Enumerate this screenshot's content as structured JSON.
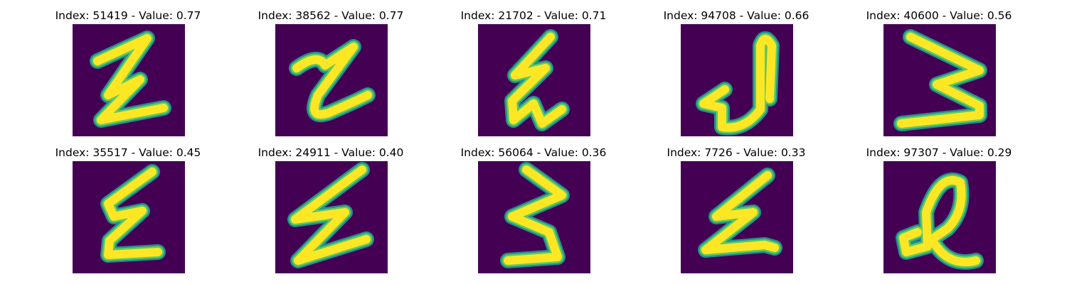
{
  "colors": {
    "background": "#440154",
    "stroke_core": "#fde725",
    "stroke_mid": "#5ec962",
    "stroke_edge": "#21918c"
  },
  "panels": [
    {
      "title": "Index: 51419 - Value: 0.77",
      "glyph": "handwritten-digit-image"
    },
    {
      "title": "Index: 38562 - Value: 0.77",
      "glyph": "handwritten-digit-image"
    },
    {
      "title": "Index: 21702 - Value: 0.71",
      "glyph": "handwritten-digit-image"
    },
    {
      "title": "Index: 94708 - Value: 0.66",
      "glyph": "handwritten-digit-image"
    },
    {
      "title": "Index: 40600 - Value: 0.56",
      "glyph": "handwritten-digit-image"
    },
    {
      "title": "Index: 35517 - Value: 0.45",
      "glyph": "handwritten-digit-image"
    },
    {
      "title": "Index: 24911 - Value: 0.40",
      "glyph": "handwritten-digit-image"
    },
    {
      "title": "Index: 56064 - Value: 0.36",
      "glyph": "handwritten-digit-image"
    },
    {
      "title": "Index: 7726 - Value: 0.33",
      "glyph": "handwritten-digit-image"
    },
    {
      "title": "Index: 97307 - Value: 0.29",
      "glyph": "handwritten-digit-image"
    }
  ]
}
